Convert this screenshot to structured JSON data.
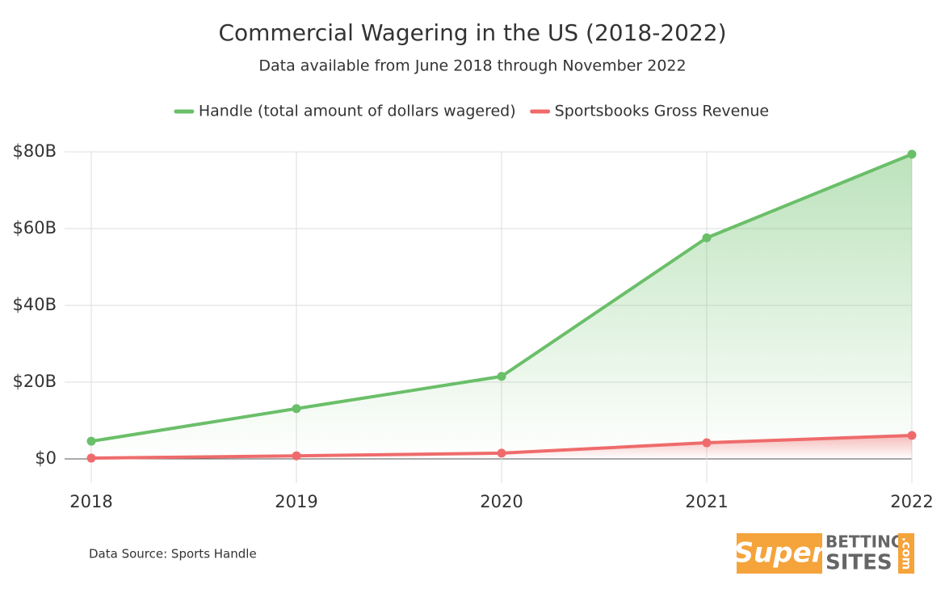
{
  "chart_data": {
    "type": "area-line",
    "title": "Commercial Wagering in the US (2018-2022)",
    "subtitle": "Data available from June 2018 through November 2022",
    "categories": [
      "2018",
      "2019",
      "2020",
      "2021",
      "2022"
    ],
    "series": [
      {
        "name": "Handle (total amount of dollars wagered)",
        "color": "#6abf69",
        "values": [
          4.6,
          13.1,
          21.5,
          57.6,
          79.4
        ]
      },
      {
        "name": "Sportsbooks Gross Revenue",
        "color": "#ef6b6b",
        "values": [
          0.2,
          0.8,
          1.5,
          4.2,
          6.1
        ]
      }
    ],
    "ylim": [
      0,
      80
    ],
    "yticks": [
      {
        "value": 0,
        "label": "$0"
      },
      {
        "value": 20,
        "label": "$20B"
      },
      {
        "value": 40,
        "label": "$40B"
      },
      {
        "value": 60,
        "label": "$60B"
      },
      {
        "value": 80,
        "label": "$80B"
      }
    ],
    "grid": true,
    "legend": "top",
    "source": "Data Source: Sports Handle",
    "logo": {
      "brand": "Super",
      "line1": "BETTING",
      "line2": "SITES",
      "suffix": ".com"
    }
  }
}
